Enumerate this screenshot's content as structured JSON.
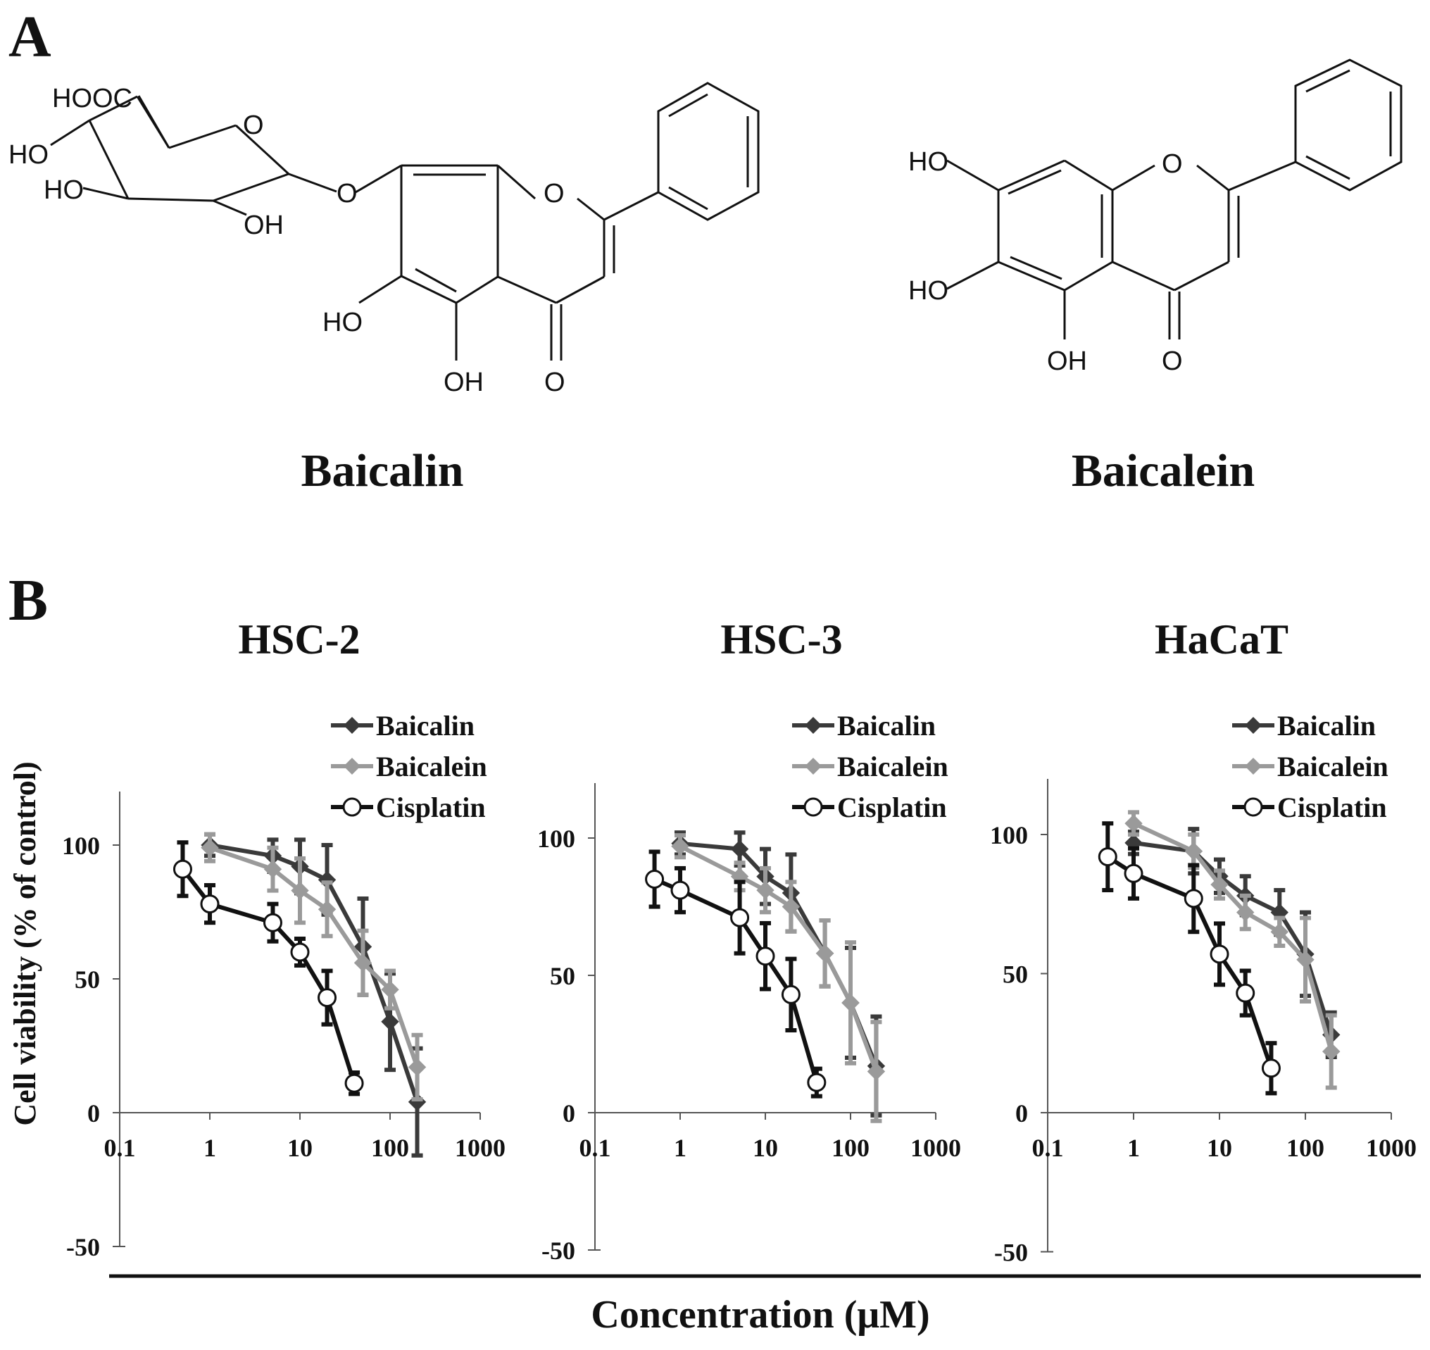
{
  "panel_a": {
    "label": "A",
    "molecules": [
      {
        "name": "Baicalin",
        "atom_labels": [
          "HOOC",
          "O",
          "HO",
          "HO",
          "OH",
          "O",
          "O",
          "HO",
          "OH",
          "O"
        ]
      },
      {
        "name": "Baicalein",
        "atom_labels": [
          "HO",
          "O",
          "HO",
          "OH",
          "O"
        ]
      }
    ]
  },
  "panel_b": {
    "label": "B",
    "shared_xlabel": "Concentration (μM)"
  },
  "colors": {
    "Baicalin": "#3a3a3a",
    "Baicalein": "#9a9a9a",
    "Cisplatin": "#111111"
  },
  "chart_data": [
    {
      "type": "line",
      "title": "HSC-2",
      "xlabel": "Concentration (μM)",
      "ylabel": "Cell viability (% of control)",
      "xscale": "log",
      "xlim": [
        0.1,
        1000
      ],
      "ylim": [
        -50,
        120
      ],
      "xticks": [
        "0.1",
        "1",
        "10",
        "100",
        "1000"
      ],
      "yticks": [
        "100",
        "50",
        "0",
        "-50"
      ],
      "legend": "top-right",
      "grid": false,
      "series": [
        {
          "name": "Baicalin",
          "marker": "diamond",
          "x": [
            1,
            5,
            10,
            20,
            50,
            100,
            200
          ],
          "y": [
            100,
            96,
            92,
            87,
            62,
            34,
            4
          ],
          "err": [
            4,
            6,
            10,
            13,
            18,
            18,
            20
          ]
        },
        {
          "name": "Baicalein",
          "marker": "diamond",
          "x": [
            1,
            5,
            10,
            20,
            50,
            100,
            200
          ],
          "y": [
            99,
            91,
            83,
            76,
            56,
            46,
            17
          ],
          "err": [
            5,
            8,
            12,
            10,
            12,
            7,
            12
          ]
        },
        {
          "name": "Cisplatin",
          "marker": "circle",
          "x": [
            0.5,
            1,
            5,
            10,
            20,
            40
          ],
          "y": [
            91,
            78,
            71,
            60,
            43,
            11
          ],
          "err": [
            10,
            7,
            7,
            5,
            10,
            4
          ]
        }
      ]
    },
    {
      "type": "line",
      "title": "HSC-3",
      "xlabel": "Concentration (μM)",
      "ylabel": "Cell viability (% of control)",
      "xscale": "log",
      "xlim": [
        0.1,
        1000
      ],
      "ylim": [
        -50,
        120
      ],
      "xticks": [
        "0.1",
        "1",
        "10",
        "100",
        "1000"
      ],
      "yticks": [
        "100",
        "50",
        "0",
        "-50"
      ],
      "legend": "top-right",
      "grid": false,
      "series": [
        {
          "name": "Baicalin",
          "marker": "diamond",
          "x": [
            1,
            5,
            10,
            20,
            50,
            100,
            200
          ],
          "y": [
            98,
            96,
            86,
            80,
            58,
            40,
            17
          ],
          "err": [
            4,
            6,
            10,
            14,
            12,
            20,
            18
          ]
        },
        {
          "name": "Baicalein",
          "marker": "diamond",
          "x": [
            1,
            5,
            10,
            20,
            50,
            100,
            200
          ],
          "y": [
            97,
            86,
            81,
            75,
            58,
            40,
            15
          ],
          "err": [
            4,
            5,
            8,
            9,
            12,
            22,
            18
          ]
        },
        {
          "name": "Cisplatin",
          "marker": "circle",
          "x": [
            0.5,
            1,
            5,
            10,
            20,
            40
          ],
          "y": [
            85,
            81,
            71,
            57,
            43,
            11
          ],
          "err": [
            10,
            8,
            13,
            12,
            13,
            5
          ]
        }
      ]
    },
    {
      "type": "line",
      "title": "HaCaT",
      "xlabel": "Concentration (μM)",
      "ylabel": "Cell viability (% of control)",
      "xscale": "log",
      "xlim": [
        0.1,
        1000
      ],
      "ylim": [
        -50,
        120
      ],
      "xticks": [
        "0.1",
        "1",
        "10",
        "100",
        "1000"
      ],
      "yticks": [
        "100",
        "50",
        "0",
        "-50"
      ],
      "legend": "top-right",
      "grid": false,
      "series": [
        {
          "name": "Baicalin",
          "marker": "diamond",
          "x": [
            1,
            5,
            10,
            20,
            50,
            100,
            200
          ],
          "y": [
            97,
            94,
            85,
            78,
            72,
            57,
            28
          ],
          "err": [
            4,
            8,
            6,
            7,
            8,
            15,
            8
          ]
        },
        {
          "name": "Baicalein",
          "marker": "diamond",
          "x": [
            1,
            5,
            10,
            20,
            50,
            100,
            200
          ],
          "y": [
            104,
            94,
            82,
            72,
            65,
            55,
            22
          ],
          "err": [
            4,
            6,
            5,
            6,
            5,
            15,
            13
          ]
        },
        {
          "name": "Cisplatin",
          "marker": "circle",
          "x": [
            0.5,
            1,
            5,
            10,
            20,
            40
          ],
          "y": [
            92,
            86,
            77,
            57,
            43,
            16
          ],
          "err": [
            12,
            9,
            12,
            11,
            8,
            9
          ]
        }
      ]
    }
  ]
}
